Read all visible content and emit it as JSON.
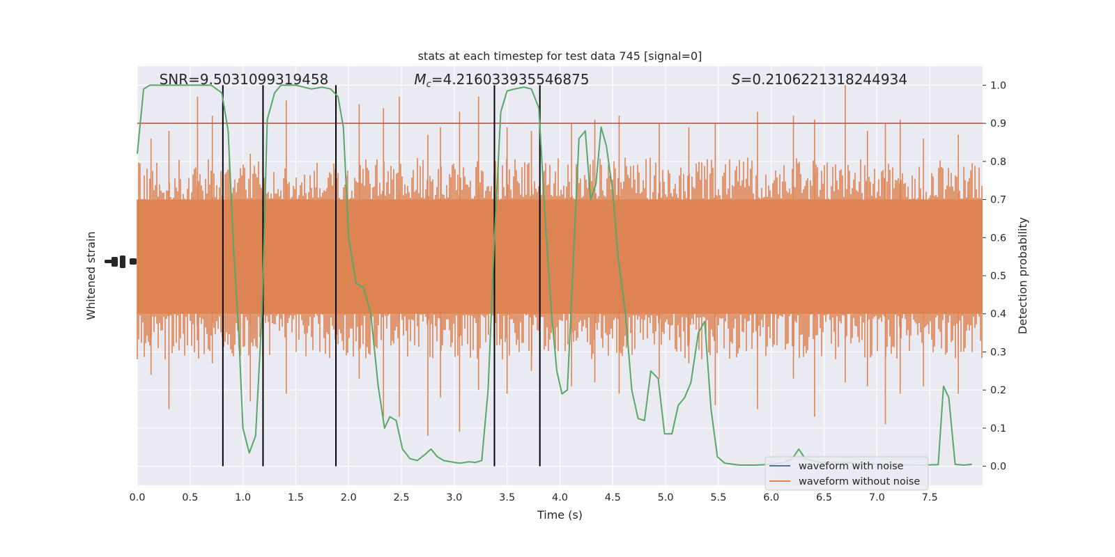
{
  "chart_data": {
    "type": "line",
    "title": "stats at each timestep for test data 745 [signal=0]",
    "xlabel": "Time (s)",
    "ylabel_left": "Whitened strain",
    "ylabel_right": "Detection probability",
    "xlim": [
      0,
      8
    ],
    "ylim_right": [
      -0.05,
      1.05
    ],
    "x_ticks": [
      0.0,
      0.5,
      1.0,
      1.5,
      2.0,
      2.5,
      3.0,
      3.5,
      4.0,
      4.5,
      5.0,
      5.5,
      6.0,
      6.5,
      7.0,
      7.5
    ],
    "x_tick_labels": [
      "0.0",
      "0.5",
      "1.0",
      "1.5",
      "2.0",
      "2.5",
      "3.0",
      "3.5",
      "4.0",
      "4.5",
      "5.0",
      "5.5",
      "6.0",
      "6.5",
      "7.0",
      "7.5"
    ],
    "y_right_ticks": [
      0.0,
      0.1,
      0.2,
      0.3,
      0.4,
      0.5,
      0.6,
      0.7,
      0.8,
      0.9,
      1.0
    ],
    "y_right_tick_labels": [
      "0.0",
      "0.1",
      "0.2",
      "0.3",
      "0.4",
      "0.5",
      "0.6",
      "0.7",
      "0.8",
      "0.9",
      "1.0"
    ],
    "grid": true,
    "annotations": {
      "snr": "SNR=9.5031099319458",
      "mc_symbol": "M",
      "mc_sub": "c",
      "mc_value": "=4.216033935546875",
      "s_symbol": "S",
      "s_value": "=0.2106221318244934"
    },
    "threshold": 0.9,
    "vertical_lines_x": [
      0.81,
      1.19,
      1.88,
      3.38,
      3.81
    ],
    "legend": {
      "position": "lower-right",
      "entries": [
        "waveform with noise",
        "waveform without noise"
      ]
    },
    "series": [
      {
        "name": "waveform with noise",
        "color": "#4c72b0",
        "values": []
      },
      {
        "name": "waveform without noise",
        "color": "#dd8452",
        "band_center": 0.54,
        "band_outer": [
          0.28,
          0.81
        ],
        "band_core": [
          0.4,
          0.7
        ],
        "spikes": [
          [
            0.57,
            0.97,
            0.33
          ],
          [
            0.71,
            0.92,
            0.27
          ],
          [
            0.3,
            0.88,
            0.15
          ],
          [
            0.13,
            0.86,
            0.24
          ],
          [
            1.07,
            0.82,
            0.17
          ],
          [
            1.41,
            0.96,
            0.19
          ],
          [
            2.1,
            0.95,
            0.23
          ],
          [
            2.33,
            0.94,
            0.13
          ],
          [
            2.48,
            0.97,
            0.13
          ],
          [
            2.75,
            0.87,
            0.08
          ],
          [
            2.87,
            0.89,
            0.18
          ],
          [
            3.05,
            0.93,
            0.09
          ],
          [
            3.23,
            0.97,
            0.2
          ],
          [
            3.5,
            0.89,
            0.19
          ],
          [
            3.73,
            0.88,
            0.25
          ],
          [
            4.11,
            0.9,
            0.21
          ],
          [
            4.33,
            0.91,
            0.22
          ],
          [
            4.56,
            0.92,
            0.19
          ],
          [
            4.94,
            0.9,
            0.23
          ],
          [
            5.22,
            0.89,
            0.27
          ],
          [
            5.47,
            0.9,
            0.16
          ],
          [
            5.87,
            0.93,
            0.15
          ],
          [
            6.21,
            0.92,
            0.23
          ],
          [
            6.41,
            0.91,
            0.13
          ],
          [
            6.7,
            1.0,
            0.22
          ],
          [
            6.91,
            0.88,
            0.21
          ],
          [
            7.08,
            0.9,
            0.11
          ],
          [
            7.22,
            0.91,
            0.19
          ],
          [
            7.44,
            0.86,
            0.21
          ],
          [
            7.77,
            0.87,
            0.19
          ]
        ]
      },
      {
        "name": "detection probability",
        "color": "#55a868",
        "points": [
          [
            0.0,
            0.82
          ],
          [
            0.06,
            0.99
          ],
          [
            0.12,
            1.0
          ],
          [
            0.3,
            1.0
          ],
          [
            0.5,
            1.0
          ],
          [
            0.7,
            1.0
          ],
          [
            0.8,
            0.98
          ],
          [
            0.86,
            0.88
          ],
          [
            0.91,
            0.58
          ],
          [
            0.96,
            0.35
          ],
          [
            1.0,
            0.1
          ],
          [
            1.06,
            0.035
          ],
          [
            1.12,
            0.08
          ],
          [
            1.18,
            0.4
          ],
          [
            1.23,
            0.91
          ],
          [
            1.3,
            0.98
          ],
          [
            1.36,
            1.0
          ],
          [
            1.5,
            1.0
          ],
          [
            1.65,
            0.99
          ],
          [
            1.75,
            0.995
          ],
          [
            1.83,
            0.99
          ],
          [
            1.9,
            0.97
          ],
          [
            1.95,
            0.89
          ],
          [
            2.0,
            0.6
          ],
          [
            2.07,
            0.48
          ],
          [
            2.14,
            0.47
          ],
          [
            2.21,
            0.4
          ],
          [
            2.28,
            0.21
          ],
          [
            2.34,
            0.1
          ],
          [
            2.39,
            0.13
          ],
          [
            2.45,
            0.12
          ],
          [
            2.51,
            0.045
          ],
          [
            2.58,
            0.02
          ],
          [
            2.65,
            0.015
          ],
          [
            2.72,
            0.03
          ],
          [
            2.78,
            0.045
          ],
          [
            2.84,
            0.025
          ],
          [
            2.9,
            0.015
          ],
          [
            3.0,
            0.01
          ],
          [
            3.06,
            0.008
          ],
          [
            3.14,
            0.012
          ],
          [
            3.2,
            0.01
          ],
          [
            3.26,
            0.015
          ],
          [
            3.32,
            0.2
          ],
          [
            3.38,
            0.6
          ],
          [
            3.44,
            0.93
          ],
          [
            3.5,
            0.985
          ],
          [
            3.57,
            0.99
          ],
          [
            3.66,
            0.995
          ],
          [
            3.73,
            0.99
          ],
          [
            3.8,
            0.94
          ],
          [
            3.86,
            0.65
          ],
          [
            3.92,
            0.4
          ],
          [
            3.97,
            0.25
          ],
          [
            4.02,
            0.19
          ],
          [
            4.07,
            0.2
          ],
          [
            4.12,
            0.5
          ],
          [
            4.18,
            0.86
          ],
          [
            4.24,
            0.88
          ],
          [
            4.29,
            0.7
          ],
          [
            4.34,
            0.74
          ],
          [
            4.39,
            0.89
          ],
          [
            4.44,
            0.84
          ],
          [
            4.5,
            0.72
          ],
          [
            4.55,
            0.55
          ],
          [
            4.62,
            0.4
          ],
          [
            4.68,
            0.2
          ],
          [
            4.74,
            0.125
          ],
          [
            4.8,
            0.12
          ],
          [
            4.86,
            0.25
          ],
          [
            4.93,
            0.23
          ],
          [
            4.99,
            0.085
          ],
          [
            5.06,
            0.085
          ],
          [
            5.12,
            0.16
          ],
          [
            5.18,
            0.18
          ],
          [
            5.24,
            0.22
          ],
          [
            5.31,
            0.35
          ],
          [
            5.37,
            0.38
          ],
          [
            5.43,
            0.15
          ],
          [
            5.49,
            0.025
          ],
          [
            5.56,
            0.008
          ],
          [
            5.7,
            0.003
          ],
          [
            5.85,
            0.003
          ],
          [
            6.0,
            0.005
          ],
          [
            6.12,
            0.01
          ],
          [
            6.2,
            0.02
          ],
          [
            6.26,
            0.045
          ],
          [
            6.32,
            0.02
          ],
          [
            6.45,
            0.01
          ],
          [
            6.6,
            0.01
          ],
          [
            6.8,
            0.008
          ],
          [
            7.0,
            0.005
          ],
          [
            7.2,
            0.004
          ],
          [
            7.4,
            0.003
          ],
          [
            7.58,
            0.004
          ],
          [
            7.63,
            0.21
          ],
          [
            7.68,
            0.18
          ],
          [
            7.74,
            0.005
          ],
          [
            7.82,
            0.003
          ],
          [
            7.9,
            0.005
          ]
        ]
      }
    ]
  }
}
